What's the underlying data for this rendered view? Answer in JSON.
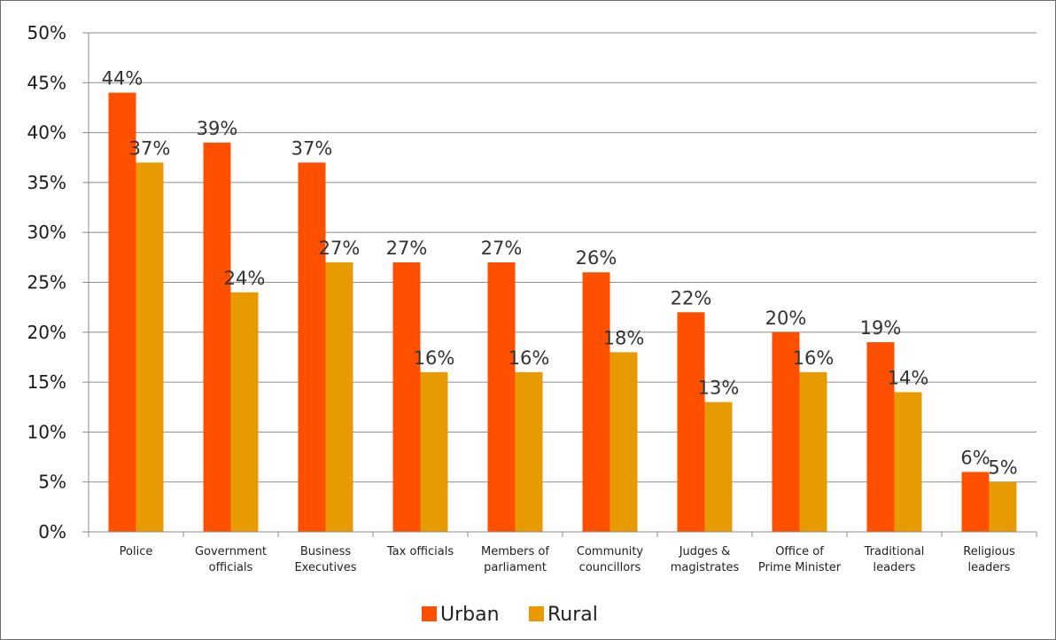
{
  "chart_data": {
    "type": "bar",
    "categories": [
      [
        "Police"
      ],
      [
        "Government",
        "officials"
      ],
      [
        "Business",
        "Executives"
      ],
      [
        "Tax officials"
      ],
      [
        "Members of",
        "parliament"
      ],
      [
        "Community",
        "councillors"
      ],
      [
        "Judges &",
        "magistrates"
      ],
      [
        "Office of",
        "Prime Minister"
      ],
      [
        "Traditional",
        "leaders"
      ],
      [
        "Religious",
        "leaders"
      ]
    ],
    "series": [
      {
        "name": "Urban",
        "color": "#ff5000",
        "values": [
          44,
          39,
          37,
          27,
          27,
          26,
          22,
          20,
          19,
          6
        ],
        "labels": [
          "44%",
          "39%",
          "37%",
          "27%",
          "27%",
          "26%",
          "22%",
          "20%",
          "19%",
          "6%"
        ]
      },
      {
        "name": "Rural",
        "color": "#e89b00",
        "values": [
          37,
          24,
          27,
          16,
          16,
          18,
          13,
          16,
          14,
          5
        ],
        "labels": [
          "37%",
          "24%",
          "27%",
          "16%",
          "16%",
          "18%",
          "13%",
          "16%",
          "14%",
          "5%"
        ]
      }
    ],
    "ylim": [
      0,
      50
    ],
    "yticks": [
      0,
      5,
      10,
      15,
      20,
      25,
      30,
      35,
      40,
      45,
      50
    ],
    "ytick_labels": [
      "0%",
      "5%",
      "10%",
      "15%",
      "20%",
      "25%",
      "30%",
      "35%",
      "40%",
      "45%",
      "50%"
    ],
    "grid": true,
    "legend": "bottom-center",
    "title": "",
    "xlabel": "",
    "ylabel": ""
  }
}
